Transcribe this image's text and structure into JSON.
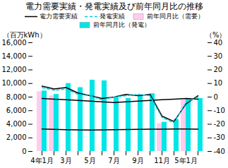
{
  "chart_data": {
    "type": "bar",
    "title": "電力需要実績・発電実績及び前年同月比の推移",
    "ylabel": "（百万kWh）",
    "y2label": "（%）",
    "categories": [
      "4年1月",
      null,
      "3月",
      null,
      "5月",
      null,
      "7月",
      null,
      "9月",
      null,
      "11月",
      null,
      "5年1月",
      null
    ],
    "series": [
      {
        "name": "前年同月比（需要）",
        "type": "bar",
        "color": "#ffccee",
        "values": [
          8800,
          8200,
          null,
          null,
          null,
          null,
          null,
          null,
          null,
          null,
          null,
          null,
          null,
          null
        ]
      },
      {
        "name": "前年同月比（発電）",
        "type": "bar",
        "color": "#00e5e5",
        "values": [
          8900,
          8400,
          10000,
          9400,
          10500,
          10400,
          7900,
          7800,
          8200,
          8500,
          null,
          null,
          7800,
          7800
        ]
      },
      {
        "type": "bar",
        "color": "#ffccee",
        "values": [
          null,
          null,
          null,
          null,
          null,
          null,
          null,
          null,
          null,
          null,
          4100,
          null,
          7600,
          null
        ]
      },
      {
        "type": "bar",
        "color": "#00e5e5",
        "values": [
          null,
          null,
          null,
          null,
          null,
          null,
          null,
          null,
          null,
          null,
          4300,
          4700,
          null,
          7700
        ]
      },
      {
        "type": "line",
        "color": "#000000",
        "line_style": "solid",
        "values": [
          7800,
          7700,
          7600,
          7500,
          7400,
          7300,
          7200,
          7300,
          7400,
          7500,
          7600,
          7700,
          7800,
          7700
        ]
      },
      {
        "type": "line",
        "color": "#000000",
        "line_style": "solid",
        "values": [
          3300,
          3250,
          3200,
          3180,
          3150,
          3170,
          3200,
          3230,
          3250,
          3270,
          3280,
          3300,
          3290,
          3260
        ]
      },
      {
        "name": "電力需要実績",
        "type": "line",
        "color": "#000000",
        "line_style": "solid",
        "axis": "y2",
        "values": [
          8,
          6,
          7,
          3,
          1,
          -1,
          0,
          2,
          1,
          2,
          -14,
          -18,
          -5,
          1
        ]
      },
      {
        "name": "発電実績",
        "type": "line",
        "color": "#00ccdd",
        "line_style": "dashed",
        "axis": "y2",
        "values": [
          7,
          5,
          6,
          2,
          1,
          -2,
          0,
          1,
          2,
          1,
          -15,
          -19,
          -4,
          0
        ]
      }
    ],
    "ylim": [
      0,
      16000
    ],
    "yticks": [
      0,
      {
        "value": 2000,
        "label": "2,000"
      },
      {
        "value": 4000,
        "label": "4,000"
      },
      {
        "value": 6000,
        "label": "6,000"
      },
      {
        "value": 8000,
        "label": "8,000"
      },
      {
        "value": 10000,
        "label": "10,000"
      },
      {
        "value": 12000,
        "label": "12,000"
      },
      {
        "value": 14000,
        "label": "14,000"
      },
      {
        "value": 16000,
        "label": "16,000"
      }
    ],
    "y2lim": [
      -40,
      40
    ],
    "y2ticks": [
      -40,
      -30,
      -20,
      -10,
      0,
      10,
      20,
      30,
      40
    ],
    "legend": "top"
  }
}
